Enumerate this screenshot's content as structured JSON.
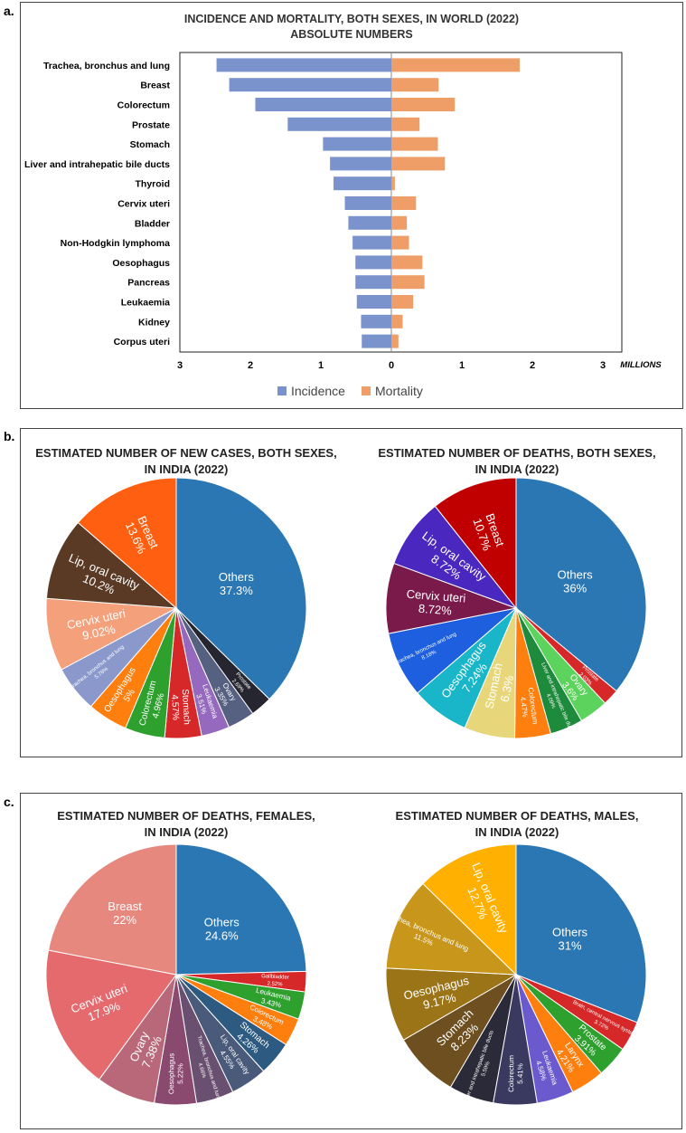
{
  "panels": {
    "a": "a.",
    "b": "b.",
    "c": "c."
  },
  "colors": {
    "incidence": "#7B93CC",
    "mortality": "#EE9E66",
    "pie_label": "#ffffff"
  },
  "chart_data": [
    {
      "type": "bar",
      "title": "INCIDENCE AND MORTALITY, BOTH SEXES, IN WORLD (2022)",
      "subtitle": "ABSOLUTE NUMBERS",
      "axis_unit": "MILLIONS",
      "tick_labels": [
        "3",
        "2",
        "1",
        "0",
        "1",
        "2",
        "3"
      ],
      "xlim": [
        -3,
        3
      ],
      "categories": [
        "Trachea, bronchus and lung",
        "Breast",
        "Colorectum",
        "Prostate",
        "Stomach",
        "Liver and intrahepatic bile ducts",
        "Thyroid",
        "Cervix uteri",
        "Bladder",
        "Non-Hodgkin lymphoma",
        "Oesophagus",
        "Pancreas",
        "Leukaemia",
        "Kidney",
        "Corpus uteri"
      ],
      "series": [
        {
          "name": "Incidence",
          "color": "#7B93CC",
          "values": [
            2.48,
            2.3,
            1.93,
            1.47,
            0.97,
            0.87,
            0.82,
            0.66,
            0.61,
            0.55,
            0.51,
            0.51,
            0.49,
            0.43,
            0.42
          ]
        },
        {
          "name": "Mortality",
          "color": "#EE9E66",
          "values": [
            1.82,
            0.67,
            0.9,
            0.4,
            0.66,
            0.76,
            0.05,
            0.35,
            0.22,
            0.25,
            0.44,
            0.47,
            0.31,
            0.16,
            0.1
          ]
        }
      ],
      "grid": false,
      "legend_position": "bottom"
    },
    {
      "type": "pie",
      "title": "ESTIMATED NUMBER OF NEW CASES, BOTH SEXES, IN INDIA (2022)",
      "title_lines": [
        "ESTIMATED NUMBER OF NEW CASES, BOTH SEXES,",
        "IN INDIA (2022)"
      ],
      "slices": [
        {
          "label": "Others",
          "pct": "37.3%",
          "value": 37.3,
          "color": "#2A77B4",
          "size": "l"
        },
        {
          "label": "Prostate",
          "pct": "2.69%",
          "value": 2.69,
          "color": "#262630",
          "size": "t"
        },
        {
          "label": "Ovary",
          "pct": "3.35%",
          "value": 3.35,
          "color": "#566080",
          "size": "s"
        },
        {
          "label": "Leukaemia",
          "pct": "3.51%",
          "value": 3.51,
          "color": "#9569BD",
          "size": "s"
        },
        {
          "label": "Stomach",
          "pct": "4.57%",
          "value": 4.57,
          "color": "#D62828",
          "size": "m"
        },
        {
          "label": "Colorectum",
          "pct": "4.96%",
          "value": 4.96,
          "color": "#2EA02E",
          "size": "m"
        },
        {
          "label": "Oesophagus",
          "pct": "5%",
          "value": 5.0,
          "color": "#FF7F0E",
          "size": "m"
        },
        {
          "label": "Trachea, bronchus and lung",
          "pct": "5.78%",
          "value": 5.78,
          "color": "#8A98CC",
          "size": "t"
        },
        {
          "label": "Cervix uteri",
          "pct": "9.02%",
          "value": 9.02,
          "color": "#F4A07A",
          "size": "l"
        },
        {
          "label": "Lip, oral cavity",
          "pct": "10.2%",
          "value": 10.2,
          "color": "#5A3A24",
          "size": "l"
        },
        {
          "label": "Breast",
          "pct": "13.6%",
          "value": 13.6,
          "color": "#FF5F10",
          "size": "l"
        }
      ]
    },
    {
      "type": "pie",
      "title": "ESTIMATED NUMBER OF DEATHS, BOTH SEXES, IN INDIA (2022)",
      "title_lines": [
        "ESTIMATED NUMBER OF DEATHS, BOTH SEXES,",
        "IN INDIA (2022)"
      ],
      "slices": [
        {
          "label": "Others",
          "pct": "36%",
          "value": 36.0,
          "color": "#2A77B4",
          "size": "l"
        },
        {
          "label": "Prostate",
          "pct": "2.03%",
          "value": 2.03,
          "color": "#D62828",
          "size": "t"
        },
        {
          "label": "Ovary",
          "pct": "3.6%",
          "value": 3.6,
          "color": "#5CD35C",
          "size": "m"
        },
        {
          "label": "Liver and intrahepatic bile ducts",
          "pct": "4.09%",
          "value": 4.09,
          "color": "#1E8A3C",
          "size": "t"
        },
        {
          "label": "Colorectum",
          "pct": "4.47%",
          "value": 4.47,
          "color": "#FF7F0E",
          "size": "s"
        },
        {
          "label": "Stomach",
          "pct": "6.3%",
          "value": 6.3,
          "color": "#E8D77A",
          "size": "l"
        },
        {
          "label": "Oesophagus",
          "pct": "7.24%",
          "value": 7.24,
          "color": "#18B6C8",
          "size": "l"
        },
        {
          "label": "Trachea, bronchus and lung",
          "pct": "8.18%",
          "value": 8.18,
          "color": "#1E5FE0",
          "size": "t"
        },
        {
          "label": "Cervix uteri",
          "pct": "8.72%",
          "value": 8.72,
          "color": "#7A1A4A",
          "size": "l"
        },
        {
          "label": "Lip, oral cavity",
          "pct": "8.72%",
          "value": 8.72,
          "color": "#4A28C0",
          "size": "l"
        },
        {
          "label": "Breast",
          "pct": "10.7%",
          "value": 10.7,
          "color": "#C00000",
          "size": "l"
        }
      ]
    },
    {
      "type": "pie",
      "title": "ESTIMATED NUMBER OF DEATHS, FEMALES, IN INDIA (2022)",
      "title_lines": [
        "ESTIMATED NUMBER OF DEATHS, FEMALES,",
        "IN INDIA (2022)"
      ],
      "slices": [
        {
          "label": "Others",
          "pct": "24.6%",
          "value": 24.6,
          "color": "#2A77B4",
          "size": "l"
        },
        {
          "label": "Gallbladder",
          "pct": "2.52%",
          "value": 2.52,
          "color": "#D62828",
          "size": "t"
        },
        {
          "label": "Leukaemia",
          "pct": "3.43%",
          "value": 3.43,
          "color": "#2EA02E",
          "size": "s"
        },
        {
          "label": "Colorectum",
          "pct": "3.48%",
          "value": 3.48,
          "color": "#FF7F0E",
          "size": "s"
        },
        {
          "label": "Stomach",
          "pct": "4.26%",
          "value": 4.26,
          "color": "#2C5A80",
          "size": "m"
        },
        {
          "label": "Lip, oral cavity",
          "pct": "4.55%",
          "value": 4.55,
          "color": "#4A5A7A",
          "size": "s"
        },
        {
          "label": "Trachea, bronchus and lung",
          "pct": "4.66%",
          "value": 4.66,
          "color": "#6A5070",
          "size": "t"
        },
        {
          "label": "Oesophagus",
          "pct": "5.22%",
          "value": 5.22,
          "color": "#8A4A70",
          "size": "s"
        },
        {
          "label": "Ovary",
          "pct": "7.38%",
          "value": 7.38,
          "color": "#B86878",
          "size": "l"
        },
        {
          "label": "Cervix uteri",
          "pct": "17.9%",
          "value": 17.9,
          "color": "#E56A6E",
          "size": "l"
        },
        {
          "label": "Breast",
          "pct": "22%",
          "value": 22.0,
          "color": "#E6887E",
          "size": "l"
        }
      ]
    },
    {
      "type": "pie",
      "title": "ESTIMATED NUMBER OF DEATHS, MALES, IN INDIA (2022)",
      "title_lines": [
        "ESTIMATED NUMBER OF DEATHS, MALES,",
        "IN INDIA (2022)"
      ],
      "slices": [
        {
          "label": "Others",
          "pct": "31%",
          "value": 31.0,
          "color": "#2A77B4",
          "size": "l"
        },
        {
          "label": "Brain, central nervous system",
          "pct": "3.72%",
          "value": 3.72,
          "color": "#D62828",
          "size": "t"
        },
        {
          "label": "Prostate",
          "pct": "3.91%",
          "value": 3.91,
          "color": "#2EA02E",
          "size": "m"
        },
        {
          "label": "Larynx",
          "pct": "4.21%",
          "value": 4.21,
          "color": "#FF7F0E",
          "size": "m"
        },
        {
          "label": "Leukaemia",
          "pct": "4.58%",
          "value": 4.58,
          "color": "#6A5ACD",
          "size": "s"
        },
        {
          "label": "Colorectum",
          "pct": "5.41%",
          "value": 5.41,
          "color": "#3A3A60",
          "size": "s"
        },
        {
          "label": "Liver and intrahepatic bile ducts",
          "pct": "5.59%",
          "value": 5.59,
          "color": "#2A2A38",
          "size": "t"
        },
        {
          "label": "Stomach",
          "pct": "8.23%",
          "value": 8.23,
          "color": "#6E5020",
          "size": "l"
        },
        {
          "label": "Oesophagus",
          "pct": "9.17%",
          "value": 9.17,
          "color": "#9C7418",
          "size": "l"
        },
        {
          "label": "Trachea, bronchus and lung",
          "pct": "11.5%",
          "value": 11.5,
          "color": "#C8961A",
          "size": "s"
        },
        {
          "label": "Lip, oral cavity",
          "pct": "12.7%",
          "value": 12.7,
          "color": "#FFB000",
          "size": "l"
        }
      ]
    }
  ]
}
